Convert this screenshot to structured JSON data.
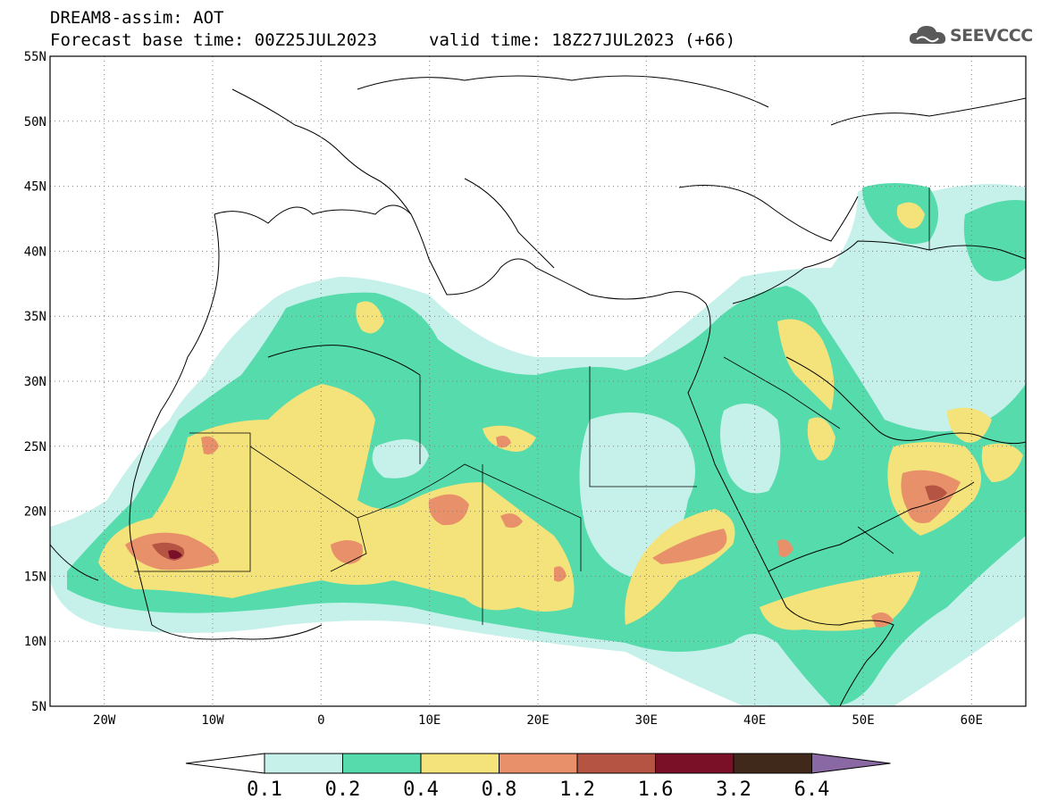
{
  "header": {
    "title": "DREAM8-assim: AOT",
    "base_time": "Forecast base time: 00Z25JUL2023",
    "valid_time": "valid time: 18Z27JUL2023 (+66)"
  },
  "logo": {
    "text": "SEEVCCC",
    "icon": "cloud-icon"
  },
  "map": {
    "lat_labels": [
      "55N",
      "50N",
      "45N",
      "40N",
      "35N",
      "30N",
      "25N",
      "20N",
      "15N",
      "10N",
      "5N"
    ],
    "lon_labels": [
      "20W",
      "10W",
      "0",
      "10E",
      "20E",
      "30E",
      "40E",
      "50E",
      "60E"
    ],
    "lat_range": [
      5,
      55
    ],
    "lon_range": [
      -25,
      65
    ],
    "grid": "dotted"
  },
  "colorbar": {
    "labels": [
      "0.1",
      "0.2",
      "0.4",
      "0.8",
      "1.2",
      "1.6",
      "3.2",
      "6.4"
    ],
    "colors": [
      "#c6f0ea",
      "#56dcac",
      "#f4e27a",
      "#e8906a",
      "#b65443",
      "#7a1028",
      "#40281a",
      "#8a68a4"
    ],
    "under_color": "#ffffff"
  },
  "chart_data": {
    "type": "heatmap",
    "title": "DREAM8-assim: AOT",
    "variable": "AOT",
    "xlabel": "",
    "ylabel": "",
    "xlim": [
      -25,
      65
    ],
    "ylim": [
      5,
      55
    ],
    "levels": [
      0.1,
      0.2,
      0.4,
      0.8,
      1.2,
      1.6,
      3.2,
      6.4
    ],
    "regions": [
      {
        "level": 0.1,
        "label": "0.1-0.2"
      },
      {
        "level": 0.2,
        "label": "0.2-0.4"
      },
      {
        "level": 0.4,
        "label": "0.4-0.8"
      },
      {
        "level": 0.8,
        "label": "0.8-1.2"
      },
      {
        "level": 1.2,
        "label": "1.2-1.6"
      }
    ]
  }
}
